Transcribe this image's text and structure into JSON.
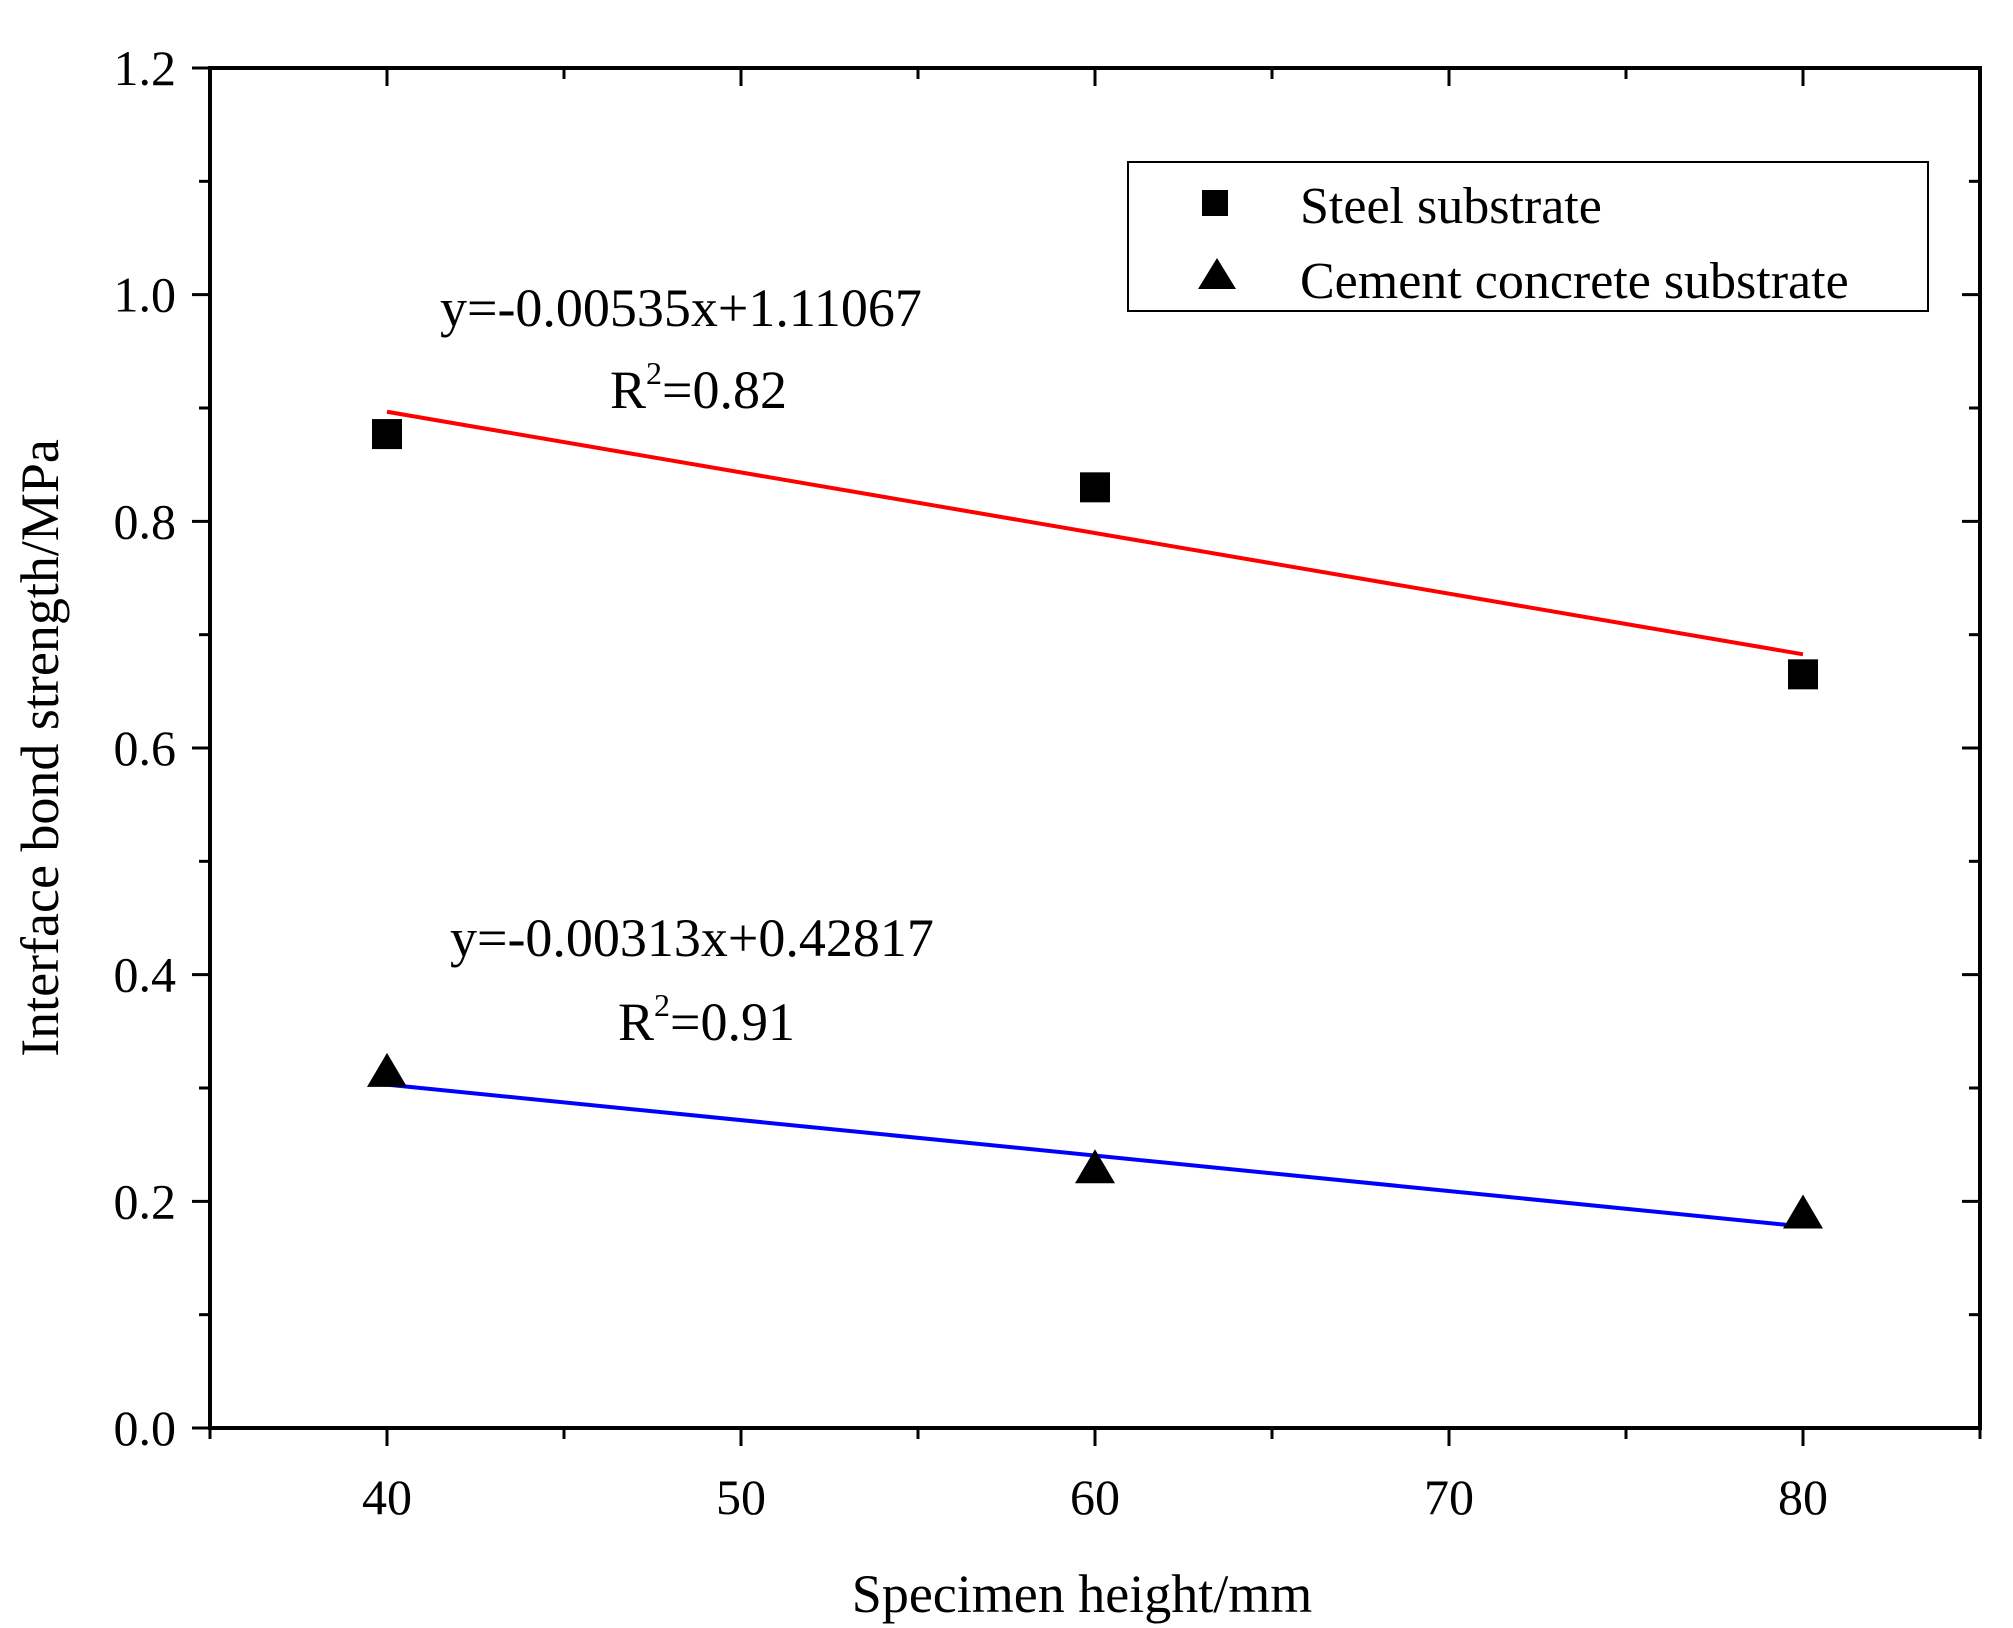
{
  "chart_data": {
    "type": "scatter",
    "xlabel": "Specimen height/mm",
    "ylabel": "Interface bond strength/MPa",
    "xlim": [
      35,
      85
    ],
    "ylim": [
      0.0,
      1.2
    ],
    "x_ticks": [
      40,
      50,
      60,
      70,
      80
    ],
    "x_tick_labels": [
      "40",
      "50",
      "60",
      "70",
      "80"
    ],
    "y_ticks": [
      0.0,
      0.2,
      0.4,
      0.6,
      0.8,
      1.0,
      1.2
    ],
    "y_tick_labels": [
      "0.0",
      "0.2",
      "0.4",
      "0.6",
      "0.8",
      "1.0",
      "1.2"
    ],
    "legend_position": "top-right",
    "series": [
      {
        "name": "Steel substrate",
        "marker": "square",
        "color": "#000000",
        "x": [
          40,
          60,
          80
        ],
        "y": [
          0.877,
          0.83,
          0.665
        ],
        "fit": {
          "slope": -0.00535,
          "intercept": 1.11067,
          "x_range": [
            40,
            80
          ],
          "color": "#ff0000",
          "equation": "y=-0.00535x+1.11067",
          "r2_base": "R",
          "r2_sup": "2",
          "r2_value": "=0.82"
        }
      },
      {
        "name": "Cement concrete substrate",
        "marker": "triangle",
        "color": "#000000",
        "x": [
          40,
          60,
          80
        ],
        "y": [
          0.313,
          0.228,
          0.188
        ],
        "fit": {
          "slope": -0.00313,
          "intercept": 0.42817,
          "x_range": [
            40,
            80
          ],
          "color": "#0000ff",
          "equation": "y=-0.00313x+0.42817",
          "r2_base": "R",
          "r2_sup": "2",
          "r2_value": "=0.91"
        }
      }
    ]
  }
}
